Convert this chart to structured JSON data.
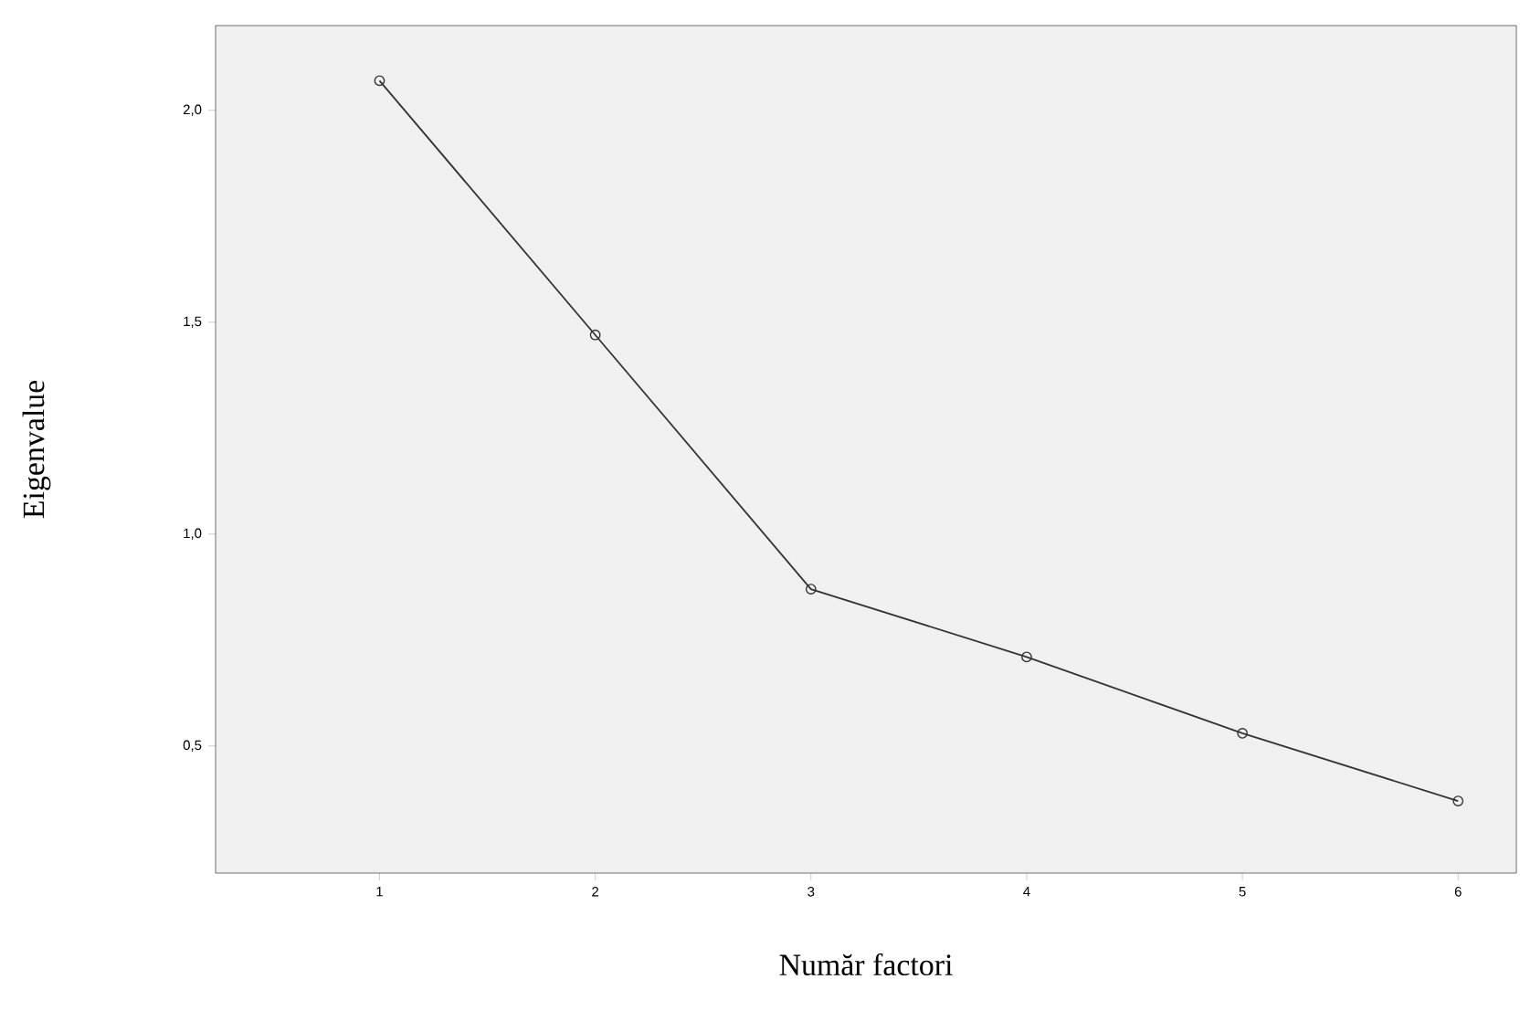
{
  "chart_data": {
    "type": "line",
    "xlabel": "Număr factori",
    "ylabel": "Eigenvalue",
    "x": [
      1,
      2,
      3,
      4,
      5,
      6
    ],
    "series": [
      {
        "color": "#333333",
        "values": [
          2.07,
          1.47,
          0.87,
          0.71,
          0.53,
          0.37
        ]
      }
    ],
    "xlim": [
      0.24,
      6.27
    ],
    "ylim": [
      0.2,
      2.2
    ],
    "xticks": [
      1,
      2,
      3,
      4,
      5,
      6
    ],
    "yticks": [
      {
        "value": 0.5,
        "label": "0,5"
      },
      {
        "value": 1.0,
        "label": "1,0"
      },
      {
        "value": 1.5,
        "label": "1,5"
      },
      {
        "value": 2.0,
        "label": "2,0"
      }
    ],
    "marker": "circle",
    "line_style": "solid",
    "grid": false
  }
}
